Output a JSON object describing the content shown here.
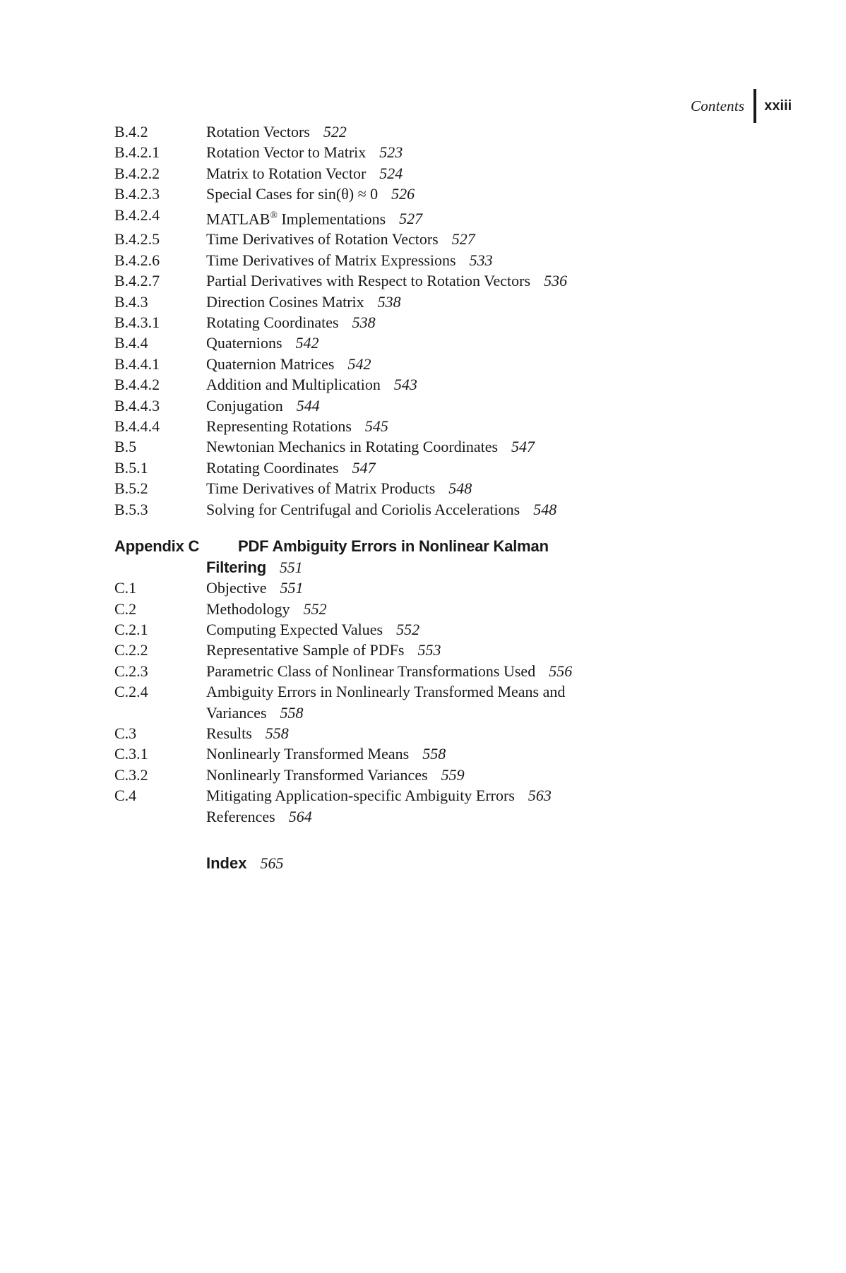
{
  "colors": {
    "ink": "#191919",
    "paper": "#ffffff"
  },
  "header": {
    "contents_label": "Contents",
    "page_number": "xxiii"
  },
  "section_b": {
    "entries": [
      {
        "num": "B.4.2",
        "title": "Rotation Vectors",
        "page": "522"
      },
      {
        "num": "B.4.2.1",
        "title": "Rotation Vector to Matrix",
        "page": "523"
      },
      {
        "num": "B.4.2.2",
        "title": "Matrix to Rotation Vector",
        "page": "524"
      },
      {
        "num": "B.4.2.3",
        "title": "Special Cases for sin(θ) ≈ 0",
        "page": "526"
      },
      {
        "num": "B.4.2.4",
        "title": "MATLAB® Implementations",
        "page": "527"
      },
      {
        "num": "B.4.2.5",
        "title": "Time Derivatives of Rotation Vectors",
        "page": "527"
      },
      {
        "num": "B.4.2.6",
        "title": "Time Derivatives of Matrix Expressions",
        "page": "533"
      },
      {
        "num": "B.4.2.7",
        "title": "Partial Derivatives with Respect to Rotation Vectors",
        "page": "536"
      },
      {
        "num": "B.4.3",
        "title": "Direction Cosines Matrix",
        "page": "538"
      },
      {
        "num": "B.4.3.1",
        "title": "Rotating Coordinates",
        "page": "538"
      },
      {
        "num": "B.4.4",
        "title": "Quaternions",
        "page": "542"
      },
      {
        "num": "B.4.4.1",
        "title": "Quaternion Matrices",
        "page": "542"
      },
      {
        "num": "B.4.4.2",
        "title": "Addition and Multiplication",
        "page": "543"
      },
      {
        "num": "B.4.4.3",
        "title": "Conjugation",
        "page": "544"
      },
      {
        "num": "B.4.4.4",
        "title": "Representing Rotations",
        "page": "545"
      },
      {
        "num": "B.5",
        "title": "Newtonian Mechanics in Rotating Coordinates",
        "page": "547"
      },
      {
        "num": "B.5.1",
        "title": "Rotating Coordinates",
        "page": "547"
      },
      {
        "num": "B.5.2",
        "title": "Time Derivatives of Matrix Products",
        "page": "548"
      },
      {
        "num": "B.5.3",
        "title": "Solving for Centrifugal and Coriolis Accelerations",
        "page": "548"
      }
    ]
  },
  "appendix_c": {
    "label": "Appendix C",
    "title": "PDF Ambiguity Errors in Nonlinear Kalman",
    "title_cont": "Filtering",
    "page": "551",
    "entries": [
      {
        "num": "C.1",
        "title": "Objective",
        "page": "551"
      },
      {
        "num": "C.2",
        "title": "Methodology",
        "page": "552"
      },
      {
        "num": "C.2.1",
        "title": "Computing Expected Values",
        "page": "552"
      },
      {
        "num": "C.2.2",
        "title": "Representative Sample of PDFs",
        "page": "553"
      },
      {
        "num": "C.2.3",
        "title": "Parametric Class of Nonlinear Transformations Used",
        "page": "556"
      },
      {
        "num": "C.2.4",
        "title": "Ambiguity Errors in Nonlinearly Transformed Means and",
        "cont": "Variances",
        "page": "558"
      },
      {
        "num": "C.3",
        "title": "Results",
        "page": "558"
      },
      {
        "num": "C.3.1",
        "title": "Nonlinearly Transformed Means",
        "page": "558"
      },
      {
        "num": "C.3.2",
        "title": "Nonlinearly Transformed Variances",
        "page": "559"
      },
      {
        "num": "C.4",
        "title": "Mitigating Application-specific Ambiguity Errors",
        "page": "563"
      },
      {
        "num": "",
        "title": "References",
        "page": "564"
      }
    ]
  },
  "back_matter": {
    "index_label": "Index",
    "index_page": "565"
  }
}
